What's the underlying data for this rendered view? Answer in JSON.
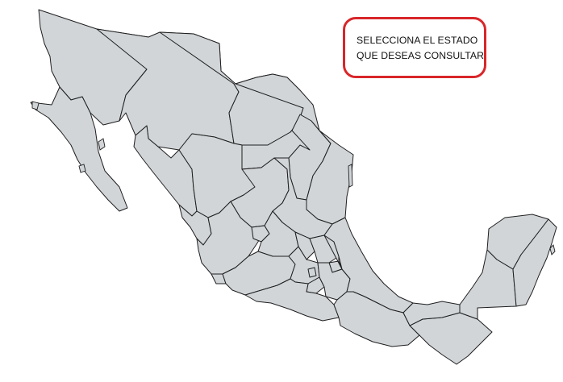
{
  "callout": {
    "line1": "SELECCIONA EL ESTADO",
    "line2": "QUE DESEAS CONSULTAR",
    "border_color": "#d8262a"
  },
  "map": {
    "fill_color": "#d1d5d8",
    "stroke_color": "#1f1f1f"
  }
}
